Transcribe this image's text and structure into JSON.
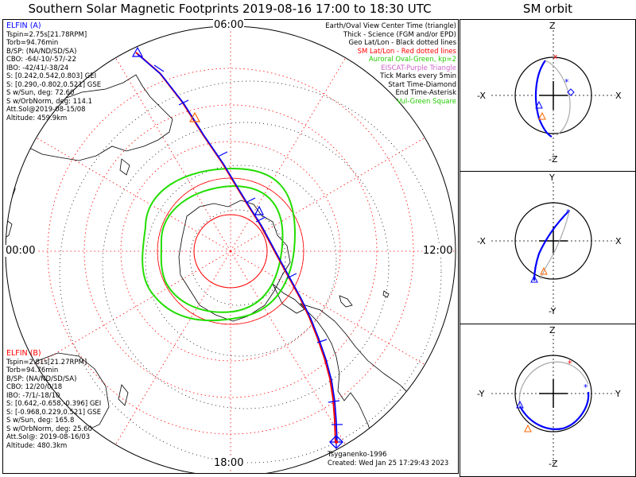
{
  "title": "Southern Solar Magnetic Footprints 2019-08-16 17:00 to 18:30 UTC",
  "sm_title": "SM orbit",
  "hour_labels": {
    "top": "06:00",
    "left": "00:00",
    "right": "12:00",
    "bottom": "18:00"
  },
  "elfin_a": {
    "name": "ELFIN (A)",
    "color": "#0000ff",
    "lines": [
      "Tspin=2.75s[21.78RPM]",
      "Torb=94.76min",
      "B/SP: (NA/ND/SD/SA)",
      "CBO: -64/-10/-57/-22",
      "IBO: -42/41/-38/24",
      "S: [0.242,0.542,0.803] GEI",
      "S: [0.290,-0.802,0.521] GSE",
      "S w/Sun, deg: 72.60",
      "S w/OrbNorm, deg: 114.1",
      "Att.Sol@2019-08-15/08",
      "Altitude: 459.9km"
    ]
  },
  "elfin_b": {
    "name": "ELFIN (B)",
    "color": "#ff0000",
    "lines": [
      "Tspin=2.81s[21.27RPM]",
      "Torb=94.76min",
      "B/SP: (NA/ND/SD/SA)",
      "CBO: 12/20/0/18",
      "IBO: -7/1/-18/10",
      "S: [0.642,-0.658,-0.396] GEI",
      "S: [-0.968,0.229,0.521] GSE",
      "S w/Sun, deg: 165.8",
      "S w/OrbNorm, deg: 25.60",
      "Att.Sol@: 2019-08-16/03",
      "Altitude: 480.3km"
    ]
  },
  "legend": [
    {
      "text": "Earth/Oval View Center Time (triangle)",
      "color": "#000000"
    },
    {
      "text": "Thick - Science (FGM and/or EPD)",
      "color": "#000000"
    },
    {
      "text": "Geo Lat/Lon - Black dotted lines",
      "color": "#000000"
    },
    {
      "text": "SM Lat/Lon - Red dotted lines",
      "color": "#ff0000"
    },
    {
      "text": "Auroral Oval-Green, kp=2",
      "color": "#22cc00"
    },
    {
      "text": "EISCAT-Purple Triangle",
      "color": "#cc66cc"
    },
    {
      "text": "Tick Marks every 5min",
      "color": "#000000"
    },
    {
      "text": "Start Time-Diamond",
      "color": "#000000"
    },
    {
      "text": "End Time-Asterisk",
      "color": "#000000"
    },
    {
      "text": "Vul-Green Square",
      "color": "#22cc00"
    }
  ],
  "footer": {
    "model": "Tsyganenko-1996",
    "created": "Created: Wed Jan 25 17:29:43 2023"
  },
  "sm_panels": [
    {
      "top": "Z",
      "bottom": "-Z",
      "left": "-X",
      "right": "X"
    },
    {
      "top": "Y",
      "bottom": "-Y",
      "left": "-X",
      "right": "X"
    },
    {
      "top": "Z",
      "bottom": "-Z",
      "left": "-Y",
      "right": "Y"
    }
  ],
  "colors": {
    "elfin_a": "#0000ff",
    "elfin_b": "#ff0000",
    "oval": "#22dd00",
    "sm_grid": "#ff0000",
    "geo_grid": "#000000",
    "orbit_other": "#aaaaaa"
  }
}
